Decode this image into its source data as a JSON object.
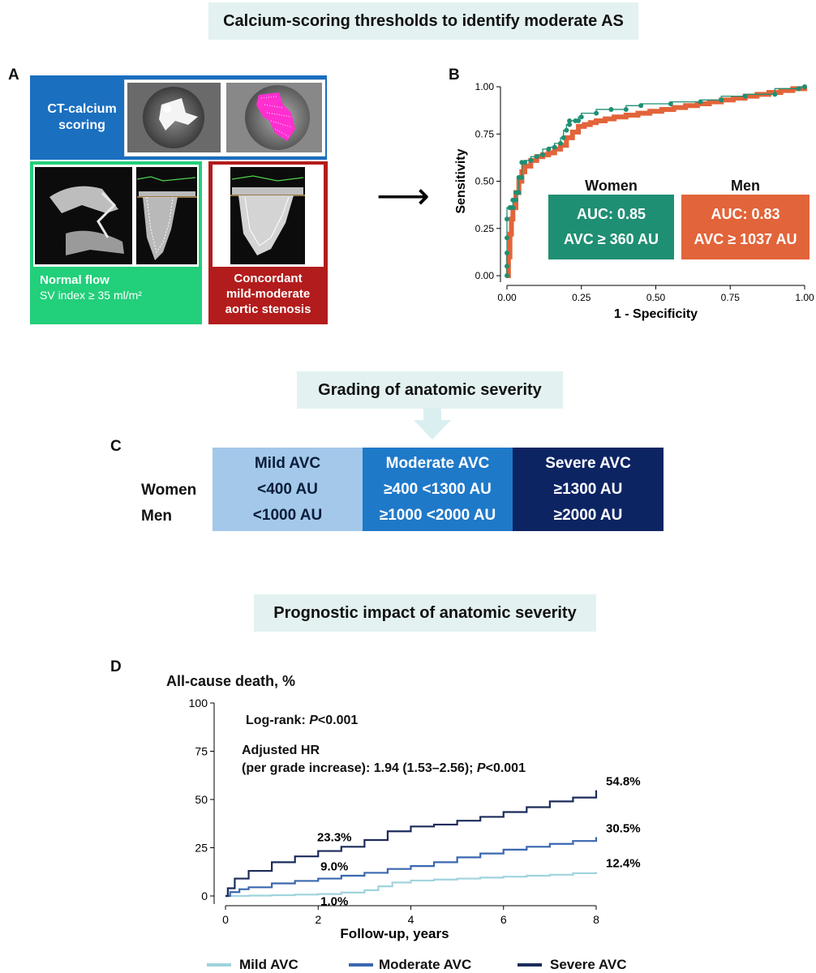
{
  "titles": {
    "top": "Calcium-scoring thresholds to identify moderate AS",
    "middle": "Grading of anatomic severity",
    "bottom": "Prognostic impact of anatomic severity"
  },
  "panel_letters": {
    "a": "A",
    "b": "B",
    "c": "C",
    "d": "D"
  },
  "panel_a": {
    "ct_label": "CT-calcium scoring",
    "normal_flow_title": "Normal flow",
    "normal_flow_sub": "SV index ≥ 35 ml/m²",
    "concordant_line1": "Concordant",
    "concordant_line2": "mild-moderate",
    "concordant_line3": "aortic stenosis",
    "colors": {
      "ct_blue": "#1a6fbf",
      "flow_green": "#22cf7a",
      "stenosis_red": "#b31c1c"
    }
  },
  "arrow": "⟶",
  "chart_data": [
    {
      "id": "roc",
      "type": "line",
      "title": "",
      "xlabel": "1 - Specificity",
      "ylabel": "Sensitivity",
      "xlim": [
        0,
        1
      ],
      "ylim": [
        0,
        1
      ],
      "xticks": [
        "0.00",
        "0.25",
        "0.50",
        "0.75",
        "1.00"
      ],
      "yticks": [
        "0.00",
        "0.25",
        "0.50",
        "0.75",
        "1.00"
      ],
      "series": [
        {
          "name": "Women",
          "color": "#1f8f73",
          "auc_label": "AUC: 0.85",
          "threshold_label": "AVC ≥ 360 AU",
          "x": [
            0,
            0,
            0,
            0,
            0,
            0.01,
            0.01,
            0.02,
            0.02,
            0.03,
            0.03,
            0.04,
            0.04,
            0.05,
            0.05,
            0.06,
            0.06,
            0.08,
            0.1,
            0.12,
            0.14,
            0.16,
            0.18,
            0.19,
            0.2,
            0.21,
            0.21,
            0.23,
            0.24,
            0.25,
            0.3,
            0.35,
            0.4,
            0.45,
            0.55,
            0.65,
            0.72,
            0.8,
            0.9,
            0.98,
            1.0
          ],
          "y": [
            0,
            0.05,
            0.12,
            0.2,
            0.3,
            0.36,
            0.36,
            0.36,
            0.4,
            0.4,
            0.44,
            0.44,
            0.52,
            0.52,
            0.6,
            0.6,
            0.6,
            0.61,
            0.63,
            0.64,
            0.67,
            0.68,
            0.7,
            0.73,
            0.77,
            0.8,
            0.82,
            0.82,
            0.82,
            0.84,
            0.86,
            0.88,
            0.88,
            0.9,
            0.91,
            0.92,
            0.93,
            0.95,
            0.96,
            0.99,
            1.0
          ]
        },
        {
          "name": "Men",
          "color": "#e2643a",
          "auc_label": "AUC: 0.83",
          "threshold_label": "AVC ≥ 1037 AU",
          "x": [
            0,
            0.005,
            0.01,
            0.015,
            0.02,
            0.03,
            0.04,
            0.05,
            0.06,
            0.08,
            0.1,
            0.12,
            0.14,
            0.16,
            0.18,
            0.2,
            0.22,
            0.24,
            0.26,
            0.28,
            0.3,
            0.33,
            0.36,
            0.4,
            0.44,
            0.48,
            0.52,
            0.56,
            0.6,
            0.64,
            0.68,
            0.72,
            0.76,
            0.8,
            0.84,
            0.88,
            0.92,
            0.96,
            1.0
          ],
          "y": [
            0,
            0.1,
            0.22,
            0.3,
            0.36,
            0.44,
            0.5,
            0.55,
            0.58,
            0.61,
            0.63,
            0.64,
            0.65,
            0.67,
            0.69,
            0.73,
            0.76,
            0.79,
            0.8,
            0.81,
            0.82,
            0.83,
            0.84,
            0.85,
            0.86,
            0.87,
            0.88,
            0.89,
            0.9,
            0.91,
            0.92,
            0.93,
            0.94,
            0.95,
            0.96,
            0.97,
            0.98,
            0.99,
            1.0
          ]
        }
      ]
    },
    {
      "id": "km",
      "type": "line",
      "title": "All-cause death, %",
      "xlabel": "Follow-up, years",
      "ylabel": "All-cause death, %",
      "xlim": [
        0,
        8
      ],
      "ylim": [
        0,
        100
      ],
      "xticks": [
        "0",
        "2",
        "4",
        "6",
        "8"
      ],
      "yticks": [
        "0",
        "25",
        "50",
        "75",
        "100"
      ],
      "annotation_logrank_prefix": "Log-rank: ",
      "annotation_logrank_p": "P",
      "annotation_logrank_suffix": "<0.001",
      "annotation_hr_line1": "Adjusted HR",
      "annotation_hr_line2_prefix": "(per grade increase): 1.94 (1.53–2.56); ",
      "annotation_hr_p": "P",
      "annotation_hr_suffix": "<0.001",
      "series": [
        {
          "name": "Mild AVC",
          "color": "#9fd4dd",
          "label_2y": "1.0%",
          "label_end": "12.4%",
          "x": [
            0,
            0.5,
            1,
            1.5,
            2,
            2.5,
            3,
            3.3,
            3.6,
            4,
            4.5,
            5,
            5.5,
            6,
            6.5,
            7,
            7.5,
            8
          ],
          "y": [
            0,
            0.2,
            0.4,
            0.7,
            1.0,
            1.8,
            3.0,
            5.0,
            7.0,
            8.0,
            8.5,
            9.0,
            9.5,
            10.0,
            10.5,
            11.0,
            11.8,
            12.4
          ]
        },
        {
          "name": "Moderate AVC",
          "color": "#3a67b0",
          "label_2y": "9.0%",
          "label_end": "30.5%",
          "x": [
            0,
            0.1,
            0.3,
            0.5,
            1,
            1.5,
            2,
            2.5,
            3,
            3.5,
            4,
            4.5,
            5,
            5.5,
            6,
            6.5,
            7,
            7.5,
            8
          ],
          "y": [
            0,
            2.0,
            3.5,
            4.5,
            6.5,
            7.8,
            9.0,
            10.5,
            12.0,
            14.0,
            15.5,
            17.5,
            20.0,
            22.0,
            24.0,
            25.5,
            27.0,
            28.5,
            30.5
          ]
        },
        {
          "name": "Severe AVC",
          "color": "#1c2b5a",
          "label_2y": "23.3%",
          "label_end": "54.8%",
          "x": [
            0,
            0.05,
            0.2,
            0.5,
            1,
            1.5,
            2,
            2.5,
            3,
            3.5,
            4,
            4.5,
            5,
            5.5,
            6,
            6.5,
            7,
            7.5,
            8
          ],
          "y": [
            0,
            4.0,
            9.0,
            13.0,
            17.5,
            20.5,
            23.3,
            25.5,
            29.0,
            33.5,
            36.0,
            37.0,
            39.0,
            41.0,
            43.5,
            46.0,
            49.0,
            51.0,
            54.8
          ]
        }
      ]
    }
  ],
  "grading": {
    "row_labels": [
      "Women",
      "Men"
    ],
    "columns": [
      {
        "header": "Mild AVC",
        "women": "<400 AU",
        "men": "<1000 AU",
        "color": "#a3c8ea"
      },
      {
        "header": "Moderate AVC",
        "women": "≥400 <1300 AU",
        "men": "≥1000 <2000 AU",
        "color": "#1f79c9"
      },
      {
        "header": "Severe AVC",
        "women": "≥1300 AU",
        "men": "≥2000 AU",
        "color": "#0d2463"
      }
    ]
  }
}
